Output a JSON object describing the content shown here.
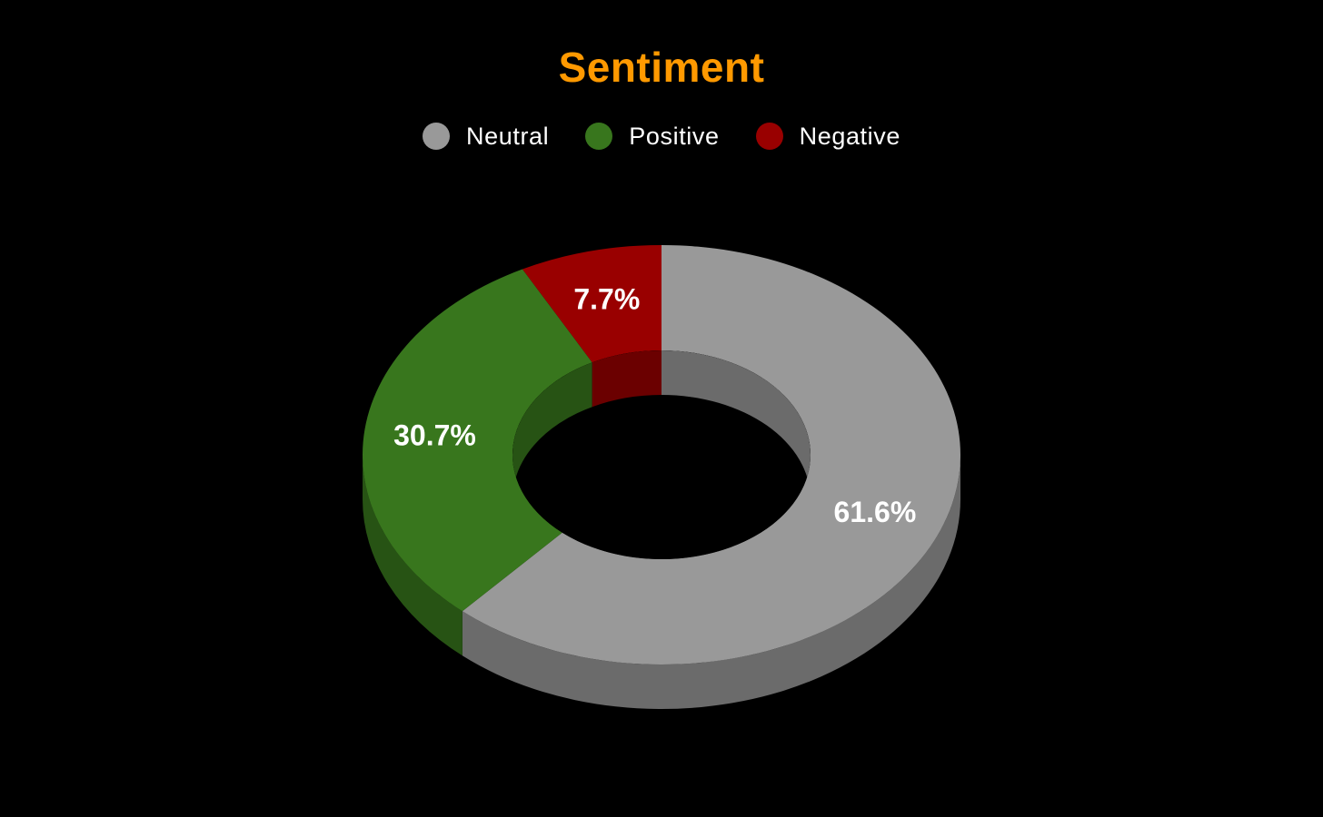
{
  "chart_data": {
    "type": "pie",
    "title": "Sentiment",
    "title_color": "#FF9900",
    "style": "3d-doughnut",
    "legend_position": "top",
    "categories": [
      "Neutral",
      "Positive",
      "Negative"
    ],
    "values": [
      61.6,
      30.7,
      7.7
    ],
    "labels": [
      "61.6%",
      "30.7%",
      "7.7%"
    ],
    "colors": [
      "#999999",
      "#38761D",
      "#990000"
    ],
    "background": "#000000"
  }
}
